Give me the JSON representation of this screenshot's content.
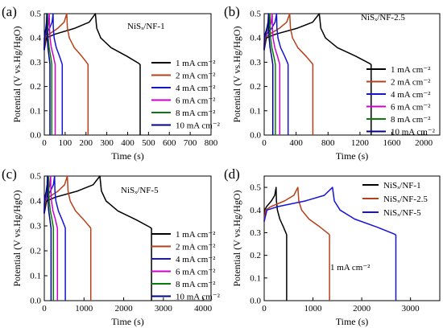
{
  "chart_data": [
    {
      "panel": "(a)",
      "type": "line",
      "annotation": "NiSₓ/NF-1",
      "xlabel": "Time (s)",
      "ylabel": "Potential (V vs.Hg/HgO)",
      "xlim": [
        0,
        800
      ],
      "ylim": [
        0,
        0.5
      ],
      "xticks": [
        0,
        100,
        200,
        300,
        400,
        500,
        600,
        700,
        800
      ],
      "yticks": [
        0,
        0.1,
        0.2,
        0.3,
        0.4,
        0.5
      ],
      "legend_position": "right",
      "series": [
        {
          "name": "1 mA cm⁻²",
          "color": "#000000",
          "charge_end": 245,
          "discharge_end": 460
        },
        {
          "name": "2 mA cm⁻²",
          "color": "#b5401a",
          "charge_end": 108,
          "discharge_end": 210
        },
        {
          "name": "4 mA cm⁻²",
          "color": "#1414d2",
          "charge_end": 42,
          "discharge_end": 86
        },
        {
          "name": "6 mA cm⁻²",
          "color": "#cc00cc",
          "charge_end": 24,
          "discharge_end": 52
        },
        {
          "name": "8 mA cm⁻²",
          "color": "#0a7a0a",
          "charge_end": 16,
          "discharge_end": 36
        },
        {
          "name": "10 mA cm⁻²",
          "color": "#00008b",
          "charge_end": 12,
          "discharge_end": 27
        }
      ]
    },
    {
      "panel": "(b)",
      "type": "line",
      "annotation": "NiSₓ/NF-2.5",
      "xlabel": "Time (s)",
      "ylabel": "Potential (V vs.Hg/HgO)",
      "xlim": [
        0,
        2200
      ],
      "ylim": [
        0,
        0.5
      ],
      "xticks": [
        0,
        400,
        800,
        1200,
        1600,
        2000
      ],
      "yticks": [
        0,
        0.1,
        0.2,
        0.3,
        0.4,
        0.5
      ],
      "legend_position": "right",
      "series": [
        {
          "name": "1 mA cm⁻²",
          "color": "#000000",
          "charge_end": 690,
          "discharge_end": 1340
        },
        {
          "name": "2 mA cm⁻²",
          "color": "#b5401a",
          "charge_end": 320,
          "discharge_end": 610
        },
        {
          "name": "4 mA cm⁻²",
          "color": "#1414d2",
          "charge_end": 155,
          "discharge_end": 300
        },
        {
          "name": "6 mA cm⁻²",
          "color": "#cc00cc",
          "charge_end": 100,
          "discharge_end": 195
        },
        {
          "name": "8 mA cm⁻²",
          "color": "#0a7a0a",
          "charge_end": 72,
          "discharge_end": 140
        },
        {
          "name": "10 mA cm⁻²",
          "color": "#00008b",
          "charge_end": 55,
          "discharge_end": 108
        }
      ]
    },
    {
      "panel": "(c)",
      "type": "line",
      "annotation": "NiSₓ/NF-5",
      "xlabel": "Time (s)",
      "ylabel": "Potential (V vs.Hg/HgO)",
      "xlim": [
        0,
        4200
      ],
      "ylim": [
        0,
        0.5
      ],
      "xticks": [
        0,
        1000,
        2000,
        3000,
        4000
      ],
      "yticks": [
        0,
        0.1,
        0.2,
        0.3,
        0.4,
        0.5
      ],
      "legend_position": "right",
      "series": [
        {
          "name": "1 mA cm⁻²",
          "color": "#000000",
          "charge_end": 1400,
          "discharge_end": 2700
        },
        {
          "name": "2 mA cm⁻²",
          "color": "#b5401a",
          "charge_end": 580,
          "discharge_end": 1170
        },
        {
          "name": "4 mA cm⁻²",
          "color": "#1414d2",
          "charge_end": 260,
          "discharge_end": 530
        },
        {
          "name": "6 mA cm⁻²",
          "color": "#cc00cc",
          "charge_end": 160,
          "discharge_end": 330
        },
        {
          "name": "8 mA cm⁻²",
          "color": "#0a7a0a",
          "charge_end": 110,
          "discharge_end": 230
        },
        {
          "name": "10 mA cm⁻²",
          "color": "#00008b",
          "charge_end": 80,
          "discharge_end": 170
        }
      ]
    },
    {
      "panel": "(d)",
      "type": "line",
      "annotation": "1 mA cm⁻²",
      "xlabel": "Time (s)",
      "ylabel": "Potential (V vs.Hg/HgO)",
      "xlim": [
        0,
        3600
      ],
      "ylim": [
        0,
        0.55
      ],
      "xticks": [
        0,
        1000,
        2000,
        3000
      ],
      "yticks": [
        0,
        0.1,
        0.2,
        0.3,
        0.4,
        0.5
      ],
      "legend_position": "top-right",
      "series": [
        {
          "name": "NiSₓ/NF-1",
          "color": "#000000",
          "charge_end": 245,
          "discharge_end": 460
        },
        {
          "name": "NiSₓ/NF-2.5",
          "color": "#b5401a",
          "charge_end": 690,
          "discharge_end": 1340
        },
        {
          "name": "NiSₓ/NF-5",
          "color": "#1414d2",
          "charge_end": 1400,
          "discharge_end": 2700
        }
      ]
    }
  ]
}
